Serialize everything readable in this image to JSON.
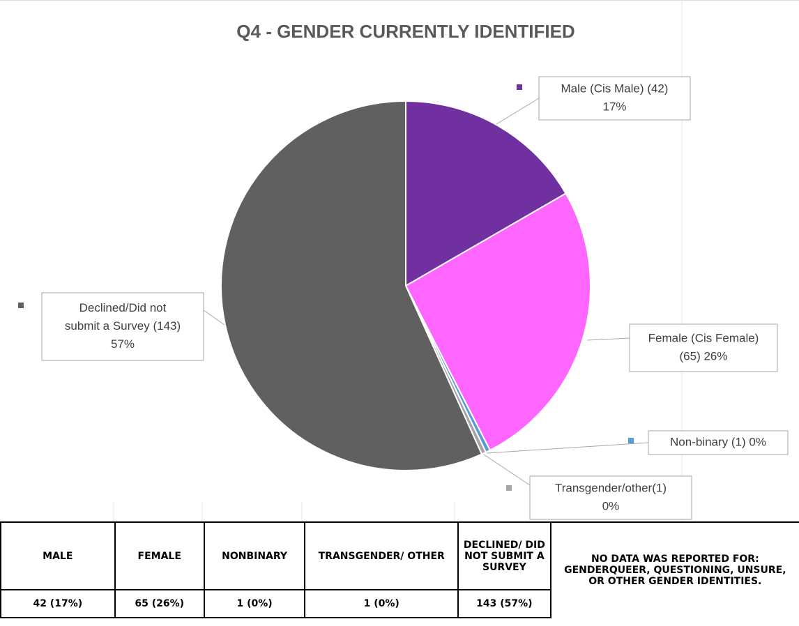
{
  "chart_data": {
    "type": "pie",
    "title": "Q4 - GENDER CURRENTLY IDENTIFIED",
    "categories": [
      "Male",
      "Female",
      "Non-binary",
      "Transgender/other",
      "Declined"
    ],
    "values": [
      42,
      65,
      1,
      1,
      143
    ],
    "value_labels": [
      [
        "Male (Cis Male) (42)",
        "17%"
      ],
      [
        "Female (Cis Female)",
        "(65) 26%"
      ],
      [
        "Non-binary (1) 0%"
      ],
      [
        "Transgender/other(1)",
        "0%"
      ],
      [
        "Declined/Did not",
        "submit a Survey (143)",
        "57%"
      ]
    ],
    "colors": [
      "#7030a0",
      "#ff66ff",
      "#5b9bd5",
      "#a5a5a5",
      "#606060"
    ]
  },
  "table": {
    "headers": [
      "MALE",
      "FEMALE",
      "NONBINARY",
      "TRANSGENDER/ OTHER",
      "DECLINED/ DID NOT SUBMIT A SURVEY"
    ],
    "rows": [
      [
        "42 (17%)",
        "65 (26%)",
        "1 (0%)",
        "1 (0%)",
        "143 (57%)"
      ]
    ],
    "note": "NO DATA WAS REPORTED FOR: GENDERQUEER, QUESTIONING, UNSURE, OR OTHER GENDER IDENTITIES."
  }
}
